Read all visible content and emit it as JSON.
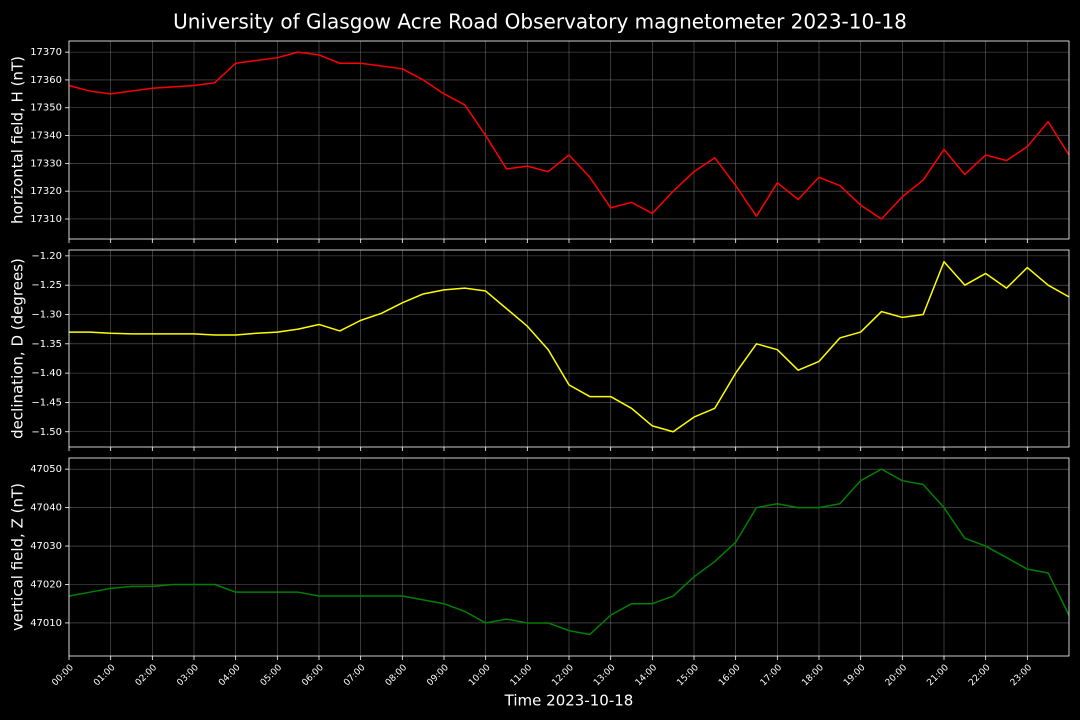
{
  "title": "University of Glasgow Acre Road Observatory magnetometer 2023-10-18",
  "chart_data": [
    {
      "type": "line",
      "ylabel": "horizontal field, H (nT)",
      "color": "#ff0000",
      "grid": true,
      "x": [
        0,
        0.5,
        1,
        1.5,
        2,
        2.5,
        3,
        3.5,
        4,
        4.5,
        5,
        5.5,
        6,
        6.5,
        7,
        7.5,
        8,
        8.5,
        9,
        9.5,
        10,
        10.5,
        11,
        11.5,
        12,
        12.5,
        13,
        13.5,
        14,
        14.5,
        15,
        15.5,
        16,
        16.5,
        17,
        17.5,
        18,
        18.5,
        19,
        19.5,
        20,
        20.5,
        21,
        21.5,
        22,
        22.5,
        23,
        23.5,
        24
      ],
      "values": [
        17358,
        17356,
        17355,
        17356,
        17357,
        17357.5,
        17358,
        17359,
        17366,
        17367,
        17368,
        17370,
        17369,
        17366,
        17366,
        17365,
        17364,
        17360,
        17355,
        17351,
        17340,
        17328,
        17329,
        17327,
        17333,
        17325,
        17314,
        17316,
        17312,
        17320,
        17327,
        17332,
        17322,
        17311,
        17323,
        17317,
        17325,
        17322,
        17315,
        17310,
        17318,
        17324,
        17335,
        17326,
        17333,
        17331,
        17336,
        17345,
        17333
      ],
      "xlim": [
        0,
        24
      ],
      "ylim": [
        17302.8,
        17374
      ],
      "xticks": [
        {
          "value": 0,
          "label": "00:00"
        },
        {
          "value": 1,
          "label": "01:00"
        },
        {
          "value": 2,
          "label": "02:00"
        },
        {
          "value": 3,
          "label": "03:00"
        },
        {
          "value": 4,
          "label": "04:00"
        },
        {
          "value": 5,
          "label": "05:00"
        },
        {
          "value": 6,
          "label": "06:00"
        },
        {
          "value": 7,
          "label": "07:00"
        },
        {
          "value": 8,
          "label": "08:00"
        },
        {
          "value": 9,
          "label": "09:00"
        },
        {
          "value": 10,
          "label": "10:00"
        },
        {
          "value": 11,
          "label": "11:00"
        },
        {
          "value": 12,
          "label": "12:00"
        },
        {
          "value": 13,
          "label": "13:00"
        },
        {
          "value": 14,
          "label": "14:00"
        },
        {
          "value": 15,
          "label": "15:00"
        },
        {
          "value": 16,
          "label": "16:00"
        },
        {
          "value": 17,
          "label": "17:00"
        },
        {
          "value": 18,
          "label": "18:00"
        },
        {
          "value": 19,
          "label": "19:00"
        },
        {
          "value": 20,
          "label": "20:00"
        },
        {
          "value": 21,
          "label": "21:00"
        },
        {
          "value": 22,
          "label": "22:00"
        },
        {
          "value": 23,
          "label": "23:00"
        }
      ],
      "yticks": [
        17310,
        17320,
        17330,
        17340,
        17350,
        17360,
        17370
      ]
    },
    {
      "type": "line",
      "ylabel": "declination, D (degrees)",
      "color": "#ffff00",
      "grid": true,
      "x": [
        0,
        0.5,
        1,
        1.5,
        2,
        2.5,
        3,
        3.5,
        4,
        4.5,
        5,
        5.5,
        6,
        6.5,
        7,
        7.5,
        8,
        8.5,
        9,
        9.5,
        10,
        10.5,
        11,
        11.5,
        12,
        12.5,
        13,
        13.5,
        14,
        14.5,
        15,
        15.5,
        16,
        16.5,
        17,
        17.5,
        18,
        18.5,
        19,
        19.5,
        20,
        20.5,
        21,
        21.5,
        22,
        22.5,
        23,
        23.5,
        24
      ],
      "values": [
        -1.33,
        -1.33,
        -1.332,
        -1.333,
        -1.333,
        -1.333,
        -1.333,
        -1.335,
        -1.335,
        -1.332,
        -1.33,
        -1.325,
        -1.317,
        -1.328,
        -1.31,
        -1.298,
        -1.28,
        -1.265,
        -1.258,
        -1.255,
        -1.26,
        -1.29,
        -1.32,
        -1.36,
        -1.42,
        -1.44,
        -1.44,
        -1.46,
        -1.49,
        -1.5,
        -1.475,
        -1.46,
        -1.4,
        -1.35,
        -1.36,
        -1.395,
        -1.38,
        -1.34,
        -1.33,
        -1.295,
        -1.305,
        -1.3,
        -1.21,
        -1.25,
        -1.23,
        -1.255,
        -1.22,
        -1.25,
        -1.27
      ],
      "xlim": [
        0,
        24
      ],
      "ylim": [
        -1.526,
        -1.19
      ],
      "xticks": [
        {
          "value": 0,
          "label": "00:00"
        },
        {
          "value": 1,
          "label": "01:00"
        },
        {
          "value": 2,
          "label": "02:00"
        },
        {
          "value": 3,
          "label": "03:00"
        },
        {
          "value": 4,
          "label": "04:00"
        },
        {
          "value": 5,
          "label": "05:00"
        },
        {
          "value": 6,
          "label": "06:00"
        },
        {
          "value": 7,
          "label": "07:00"
        },
        {
          "value": 8,
          "label": "08:00"
        },
        {
          "value": 9,
          "label": "09:00"
        },
        {
          "value": 10,
          "label": "10:00"
        },
        {
          "value": 11,
          "label": "11:00"
        },
        {
          "value": 12,
          "label": "12:00"
        },
        {
          "value": 13,
          "label": "13:00"
        },
        {
          "value": 14,
          "label": "14:00"
        },
        {
          "value": 15,
          "label": "15:00"
        },
        {
          "value": 16,
          "label": "16:00"
        },
        {
          "value": 17,
          "label": "17:00"
        },
        {
          "value": 18,
          "label": "18:00"
        },
        {
          "value": 19,
          "label": "19:00"
        },
        {
          "value": 20,
          "label": "20:00"
        },
        {
          "value": 21,
          "label": "21:00"
        },
        {
          "value": 22,
          "label": "22:00"
        },
        {
          "value": 23,
          "label": "23:00"
        }
      ],
      "yticks": [
        {
          "value": -1.5,
          "label": "−1.50"
        },
        {
          "value": -1.45,
          "label": "−1.45"
        },
        {
          "value": -1.4,
          "label": "−1.40"
        },
        {
          "value": -1.35,
          "label": "−1.35"
        },
        {
          "value": -1.3,
          "label": "−1.30"
        },
        {
          "value": -1.25,
          "label": "−1.25"
        },
        {
          "value": -1.2,
          "label": "−1.20"
        }
      ]
    },
    {
      "type": "line",
      "ylabel": "vertical field, Z (nT)",
      "xlabel": "Time 2023-10-18",
      "color": "#008000",
      "grid": true,
      "x": [
        0,
        0.5,
        1,
        1.5,
        2,
        2.5,
        3,
        3.5,
        4,
        4.5,
        5,
        5.5,
        6,
        6.5,
        7,
        7.5,
        8,
        8.5,
        9,
        9.5,
        10,
        10.5,
        11,
        11.5,
        12,
        12.5,
        13,
        13.5,
        14,
        14.5,
        15,
        15.5,
        16,
        16.5,
        17,
        17.5,
        18,
        18.5,
        19,
        19.5,
        20,
        20.5,
        21,
        21.5,
        22,
        22.5,
        23,
        23.5,
        24
      ],
      "values": [
        47017,
        47018,
        47019,
        47019.5,
        47019.5,
        47020,
        47020,
        47020,
        47018,
        47018,
        47018,
        47018,
        47017,
        47017,
        47017,
        47017,
        47017,
        47016,
        47015,
        47013,
        47010,
        47011,
        47010,
        47010,
        47008,
        47007,
        47012,
        47015,
        47015,
        47017,
        47022,
        47026,
        47031,
        47040,
        47041,
        47040,
        47040,
        47041,
        47047,
        47050,
        47047,
        47046,
        47040,
        47032,
        47030,
        47027,
        47024,
        47023,
        47012
      ],
      "xlim": [
        0,
        24
      ],
      "ylim": [
        47001.4,
        47052.9
      ],
      "xticks": [
        {
          "value": 0,
          "label": "00:00"
        },
        {
          "value": 1,
          "label": "01:00"
        },
        {
          "value": 2,
          "label": "02:00"
        },
        {
          "value": 3,
          "label": "03:00"
        },
        {
          "value": 4,
          "label": "04:00"
        },
        {
          "value": 5,
          "label": "05:00"
        },
        {
          "value": 6,
          "label": "06:00"
        },
        {
          "value": 7,
          "label": "07:00"
        },
        {
          "value": 8,
          "label": "08:00"
        },
        {
          "value": 9,
          "label": "09:00"
        },
        {
          "value": 10,
          "label": "10:00"
        },
        {
          "value": 11,
          "label": "11:00"
        },
        {
          "value": 12,
          "label": "12:00"
        },
        {
          "value": 13,
          "label": "13:00"
        },
        {
          "value": 14,
          "label": "14:00"
        },
        {
          "value": 15,
          "label": "15:00"
        },
        {
          "value": 16,
          "label": "16:00"
        },
        {
          "value": 17,
          "label": "17:00"
        },
        {
          "value": 18,
          "label": "18:00"
        },
        {
          "value": 19,
          "label": "19:00"
        },
        {
          "value": 20,
          "label": "20:00"
        },
        {
          "value": 21,
          "label": "21:00"
        },
        {
          "value": 22,
          "label": "22:00"
        },
        {
          "value": 23,
          "label": "23:00"
        }
      ],
      "yticks": [
        47010,
        47020,
        47030,
        47040,
        47050
      ]
    }
  ]
}
